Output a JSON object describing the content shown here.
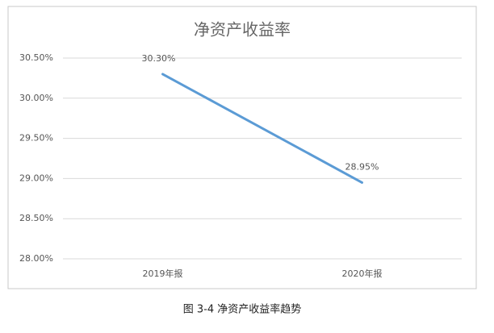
{
  "chart_data": {
    "type": "line",
    "title": "净资产收益率",
    "categories": [
      "2019年报",
      "2020年报"
    ],
    "values": [
      30.3,
      28.95
    ],
    "value_labels": [
      "30.30%",
      "28.95%"
    ],
    "color": "#5b9bd5",
    "ylim": [
      28,
      30.5
    ],
    "yticks": [
      {
        "value": 28,
        "label": "28.00%"
      },
      {
        "value": 28.5,
        "label": "28.50%"
      },
      {
        "value": 29,
        "label": "29.00%"
      },
      {
        "value": 29.5,
        "label": "29.50%"
      },
      {
        "value": 30,
        "label": "30.00%"
      },
      {
        "value": 30.5,
        "label": "30.50%"
      }
    ],
    "grid": true
  },
  "caption": "图 3-4 净资产收益率趋势"
}
